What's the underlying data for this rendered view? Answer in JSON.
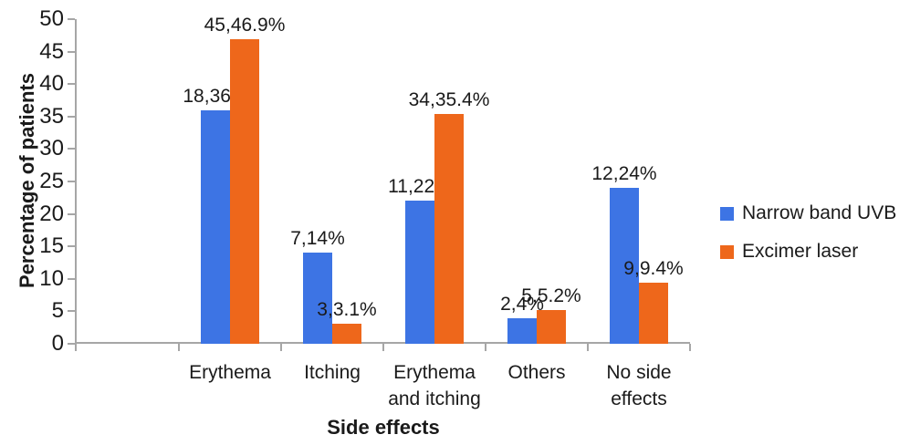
{
  "chart_data": {
    "type": "bar",
    "title": "",
    "xlabel": "Side effects",
    "ylabel": "Percentage of patients",
    "categories": [
      "Erythema",
      "Itching",
      "Erythema\nand itching",
      "Others",
      "No side\neffects"
    ],
    "series": [
      {
        "name": "Narrow band UVB",
        "color": "#3D74E4",
        "values": [
          36,
          14,
          22,
          4,
          24
        ],
        "labels": [
          "18,36%",
          "7,14%",
          "11,22%",
          "2,4%",
          "12,24%"
        ]
      },
      {
        "name": "Excimer laser",
        "color": "#EE671B",
        "values": [
          46.9,
          3.1,
          35.4,
          5.2,
          9.4
        ],
        "labels": [
          "45,46.9%",
          "3,3.1%",
          "34,35.4%",
          "5,5.2%",
          "9,9.4%"
        ]
      }
    ],
    "ylim": [
      0,
      50
    ],
    "ytick_step": 5,
    "grid": "off",
    "legend_position": "right",
    "axis_color": "#A6A6A6",
    "text_color": "#1A1A1A"
  }
}
